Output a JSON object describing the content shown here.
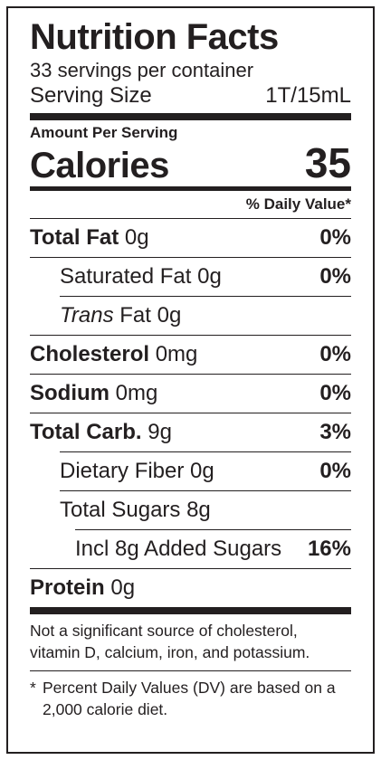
{
  "label": {
    "title": "Nutrition Facts",
    "servings_per_container": "33 servings per container",
    "serving_size_label": "Serving Size",
    "serving_size_value": "1T/15mL",
    "amount_per_serving": "Amount Per Serving",
    "calories_label": "Calories",
    "calories_value": "35",
    "daily_value_header": "% Daily Value*"
  },
  "nutrients": [
    {
      "name": "Total Fat",
      "amount": "0g",
      "dv": "0%"
    },
    {
      "name": "Saturated Fat",
      "amount": "0g",
      "dv": "0%"
    },
    {
      "name": "Trans",
      "name_rest": "Fat",
      "amount": "0g",
      "dv": ""
    },
    {
      "name": "Cholesterol",
      "amount": "0mg",
      "dv": "0%"
    },
    {
      "name": "Sodium",
      "amount": "0mg",
      "dv": "0%"
    },
    {
      "name": "Total Carb.",
      "amount": "9g",
      "dv": "3%"
    },
    {
      "name": "Dietary Fiber",
      "amount": "0g",
      "dv": "0%"
    },
    {
      "name": "Total Sugars",
      "amount": "8g",
      "dv": ""
    },
    {
      "name": "Incl 8g Added Sugars",
      "amount": "",
      "dv": "16%"
    },
    {
      "name": "Protein",
      "amount": "0g",
      "dv": ""
    }
  ],
  "footnotes": {
    "not_significant": "Not a significant source of cholesterol, vitamin D, calcium, iron, and potassium.",
    "asterisk": "*",
    "percent_dv": "Percent Daily Values (DV) are based on a 2,000 calorie diet."
  },
  "colors": {
    "ink": "#231f20",
    "background": "#ffffff"
  }
}
